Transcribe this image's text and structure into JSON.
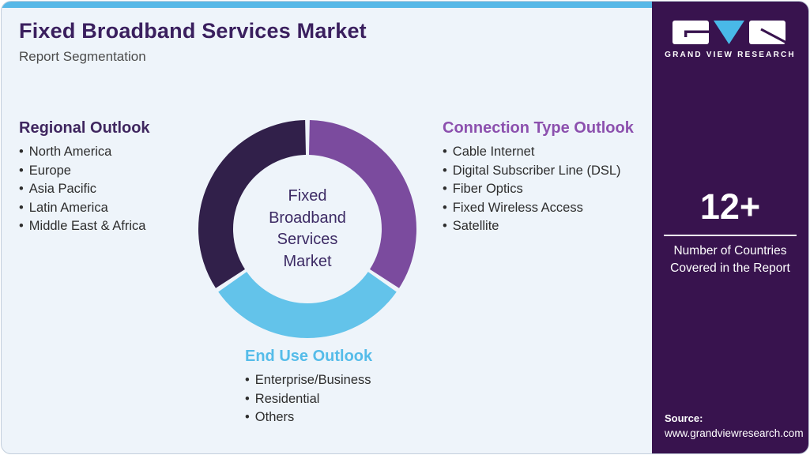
{
  "header": {
    "title": "Fixed Broadband Services Market",
    "subtitle": "Report Segmentation"
  },
  "outlooks": {
    "regional": {
      "heading": "Regional Outlook",
      "items": [
        "North America",
        "Europe",
        "Asia Pacific",
        "Latin America",
        "Middle East & Africa"
      ]
    },
    "connection": {
      "heading": "Connection Type Outlook",
      "items": [
        "Cable Internet",
        "Digital Subscriber Line (DSL)",
        "Fiber Optics",
        "Fixed Wireless Access",
        "Satellite"
      ]
    },
    "end_use": {
      "heading": "End Use Outlook",
      "items": [
        "Enterprise/Business",
        "Residential",
        "Others"
      ]
    }
  },
  "chart_data": {
    "type": "pie",
    "donut": true,
    "title": "Fixed Broadband Services Market Report Segmentation",
    "center_label": "Fixed\nBroadband\nServices\nMarket",
    "gap_degrees": 2.4,
    "legend_position": "around-chart",
    "segments": [
      {
        "name": "connection-type-outlook",
        "label": "Connection Type Outlook",
        "start_deg": 0,
        "end_deg": 124,
        "share_pct": 34.4,
        "color": "#7b4b9e"
      },
      {
        "name": "end-use-outlook",
        "label": "End Use Outlook",
        "start_deg": 124,
        "end_deg": 236,
        "share_pct": 31.1,
        "color": "#63c3ea"
      },
      {
        "name": "regional-outlook",
        "label": "Regional Outlook",
        "start_deg": 236,
        "end_deg": 360,
        "share_pct": 34.4,
        "color": "#31204a"
      }
    ]
  },
  "sidebar": {
    "brand": "GRAND VIEW RESEARCH",
    "stat": {
      "value": "12+",
      "caption": "Number of Countries Covered in the Report"
    },
    "source_label": "Source:",
    "source_url": "www.grandviewresearch.com"
  },
  "colors": {
    "top_bar": "#57b8e7",
    "card_background": "#eef4fa",
    "sidebar_background": "#38134e",
    "title_text": "#3a1f5e",
    "regional_heading": "#3f265f",
    "connection_heading": "#8c50ae",
    "end_use_heading": "#55bce9",
    "logo_triangle": "#49b9e8"
  }
}
